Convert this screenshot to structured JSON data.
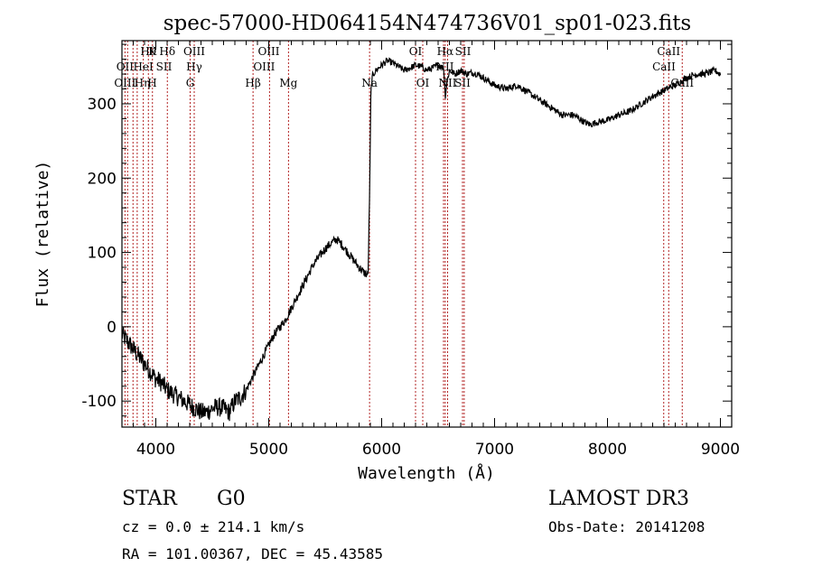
{
  "chart_data": {
    "type": "line",
    "title": "spec-57000-HD064154N474736V01_sp01-023.fits",
    "xlabel": "Wavelength (Å)",
    "ylabel": "Flux (relative)",
    "xlim": [
      3700,
      9100
    ],
    "ylim": [
      -135,
      385
    ],
    "xticks": [
      4000,
      5000,
      6000,
      7000,
      8000,
      9000
    ],
    "yticks": [
      -100,
      0,
      100,
      200,
      300
    ],
    "grid": false,
    "series": [
      {
        "name": "spectrum",
        "x": [
          3700,
          3750,
          3800,
          3850,
          3900,
          3950,
          4000,
          4050,
          4100,
          4150,
          4200,
          4250,
          4300,
          4350,
          4400,
          4450,
          4500,
          4550,
          4600,
          4650,
          4700,
          4750,
          4800,
          4850,
          4900,
          4950,
          5000,
          5050,
          5100,
          5150,
          5200,
          5250,
          5300,
          5350,
          5400,
          5450,
          5500,
          5550,
          5600,
          5650,
          5700,
          5750,
          5800,
          5850,
          5880,
          5895,
          5905,
          5920,
          5950,
          6000,
          6050,
          6100,
          6150,
          6200,
          6250,
          6300,
          6350,
          6400,
          6450,
          6500,
          6550,
          6563,
          6580,
          6600,
          6650,
          6700,
          6750,
          6800,
          6850,
          6900,
          6950,
          7000,
          7100,
          7200,
          7300,
          7400,
          7500,
          7600,
          7700,
          7800,
          7850,
          7900,
          8000,
          8100,
          8200,
          8300,
          8400,
          8500,
          8550,
          8600,
          8650,
          8700,
          8750,
          8800,
          8850,
          8900,
          8950,
          9000
        ],
        "y": [
          -10,
          -20,
          -30,
          -40,
          -50,
          -60,
          -70,
          -75,
          -85,
          -90,
          -95,
          -100,
          -105,
          -110,
          -115,
          -115,
          -110,
          -108,
          -110,
          -115,
          -100,
          -95,
          -85,
          -70,
          -55,
          -40,
          -25,
          -10,
          0,
          10,
          25,
          40,
          55,
          70,
          85,
          95,
          105,
          112,
          118,
          110,
          100,
          90,
          80,
          72,
          70,
          195,
          320,
          338,
          345,
          352,
          358,
          355,
          350,
          345,
          348,
          352,
          350,
          345,
          348,
          352,
          348,
          310,
          330,
          345,
          340,
          345,
          340,
          342,
          340,
          335,
          330,
          325,
          320,
          325,
          315,
          305,
          295,
          285,
          285,
          275,
          272,
          275,
          278,
          285,
          290,
          300,
          310,
          318,
          322,
          325,
          330,
          335,
          338,
          340,
          340,
          342,
          345,
          340
        ]
      }
    ],
    "line_labels": [
      {
        "x": 3934,
        "row": 1,
        "label": "Hθ"
      },
      {
        "x": 3970,
        "row": 1,
        "label": "K"
      },
      {
        "x": 4102,
        "row": 1,
        "label": "Hδ"
      },
      {
        "x": 4340,
        "row": 1,
        "label": "OIII"
      },
      {
        "x": 5000,
        "row": 1,
        "label": "OIII"
      },
      {
        "x": 6300,
        "row": 1,
        "label": "OI"
      },
      {
        "x": 6563,
        "row": 1,
        "label": "Hα"
      },
      {
        "x": 6720,
        "row": 1,
        "label": "SII"
      },
      {
        "x": 8542,
        "row": 1,
        "label": "CaII"
      },
      {
        "x": 3727,
        "row": 2,
        "label": "OII"
      },
      {
        "x": 3889,
        "row": 2,
        "label": "HeI"
      },
      {
        "x": 4072,
        "row": 2,
        "label": "SII"
      },
      {
        "x": 4340,
        "row": 2,
        "label": "Hγ"
      },
      {
        "x": 4959,
        "row": 2,
        "label": "OIII"
      },
      {
        "x": 6560,
        "row": 2,
        "label": "NII"
      },
      {
        "x": 8500,
        "row": 2,
        "label": "CaII"
      },
      {
        "x": 3727,
        "row": 3,
        "label": "OIII"
      },
      {
        "x": 3880,
        "row": 3,
        "label": "Hη"
      },
      {
        "x": 3968,
        "row": 3,
        "label": "H"
      },
      {
        "x": 4304,
        "row": 3,
        "label": "G"
      },
      {
        "x": 4861,
        "row": 3,
        "label": "Hβ"
      },
      {
        "x": 5175,
        "row": 3,
        "label": "Mg"
      },
      {
        "x": 5893,
        "row": 3,
        "label": "Na"
      },
      {
        "x": 6364,
        "row": 3,
        "label": "OI"
      },
      {
        "x": 6584,
        "row": 3,
        "label": "NII"
      },
      {
        "x": 6716,
        "row": 3,
        "label": "SII"
      },
      {
        "x": 8662,
        "row": 3,
        "label": "CaII"
      }
    ],
    "line_markers_x": [
      3727,
      3750,
      3798,
      3835,
      3889,
      3934,
      3970,
      4102,
      4304,
      4340,
      4861,
      5007,
      5175,
      5893,
      6300,
      6364,
      6548,
      6563,
      6584,
      6716,
      6731,
      8498,
      8542,
      8662
    ],
    "line_marker_color": "#b22222",
    "trace_color": "#000000"
  },
  "info": {
    "object_type": "STAR",
    "subclass": "G0",
    "survey": "LAMOST DR3",
    "redshift": "cz = 0.0 ± 214.1 km/s",
    "obs_date": "Obs-Date: 20141208",
    "coords": "RA = 101.00367, DEC =  45.43585"
  }
}
